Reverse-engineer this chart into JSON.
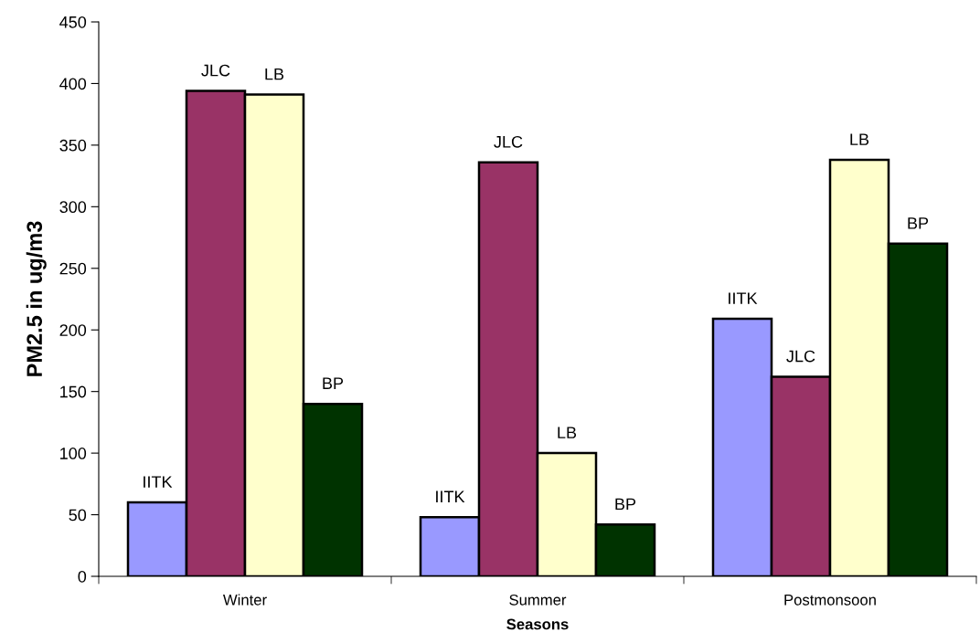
{
  "chart_data": {
    "type": "bar",
    "xlabel": "Seasons",
    "ylabel": "PM2.5 in ug/m3",
    "categories": [
      "Winter",
      "Summer",
      "Postmonsoon"
    ],
    "series": [
      {
        "name": "IITK",
        "color": "#9999ff",
        "values": [
          60,
          48,
          209
        ]
      },
      {
        "name": "JLC",
        "color": "#993366",
        "values": [
          394,
          336,
          162
        ]
      },
      {
        "name": "LB",
        "color": "#ffffcc",
        "values": [
          391,
          100,
          338
        ]
      },
      {
        "name": "BP",
        "color": "#003300",
        "values": [
          140,
          42,
          270
        ]
      }
    ],
    "ylim": [
      0,
      450
    ],
    "yticks": [
      0,
      50,
      100,
      150,
      200,
      250,
      300,
      350,
      400,
      450
    ],
    "grid": false,
    "legend": false
  }
}
